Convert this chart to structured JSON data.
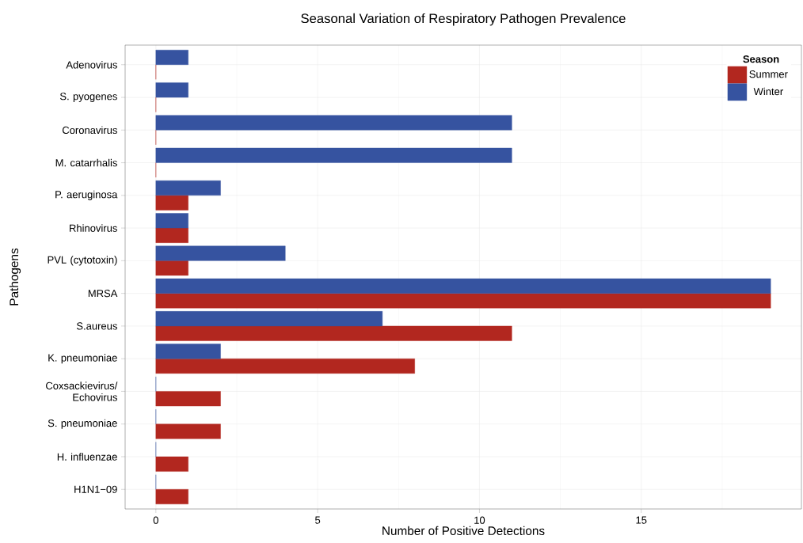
{
  "chart_data": {
    "type": "bar",
    "orientation": "horizontal",
    "title": "Seasonal Variation of Respiratory Pathogen Prevalence",
    "xlabel": "Number of Positive Detections",
    "ylabel": "Pathogens",
    "legend_title": "Season",
    "categories": [
      "Adenovirus",
      "S. pyogenes",
      "Coronavirus",
      "M. catarrhalis",
      "P. aeruginosa",
      "Rhinovirus",
      "PVL (cytotoxin)",
      "MRSA",
      "S.aureus",
      "K. pneumoniae",
      "Coxsackievirus/ Echovirus",
      "S. pneumoniae",
      "H. influenzae",
      "H1N1−09"
    ],
    "series": [
      {
        "name": "Summer",
        "color": "#b2271f",
        "values": [
          0,
          0,
          0,
          0,
          1,
          1,
          1,
          19,
          11,
          8,
          2,
          2,
          1,
          1
        ]
      },
      {
        "name": "Winter",
        "color": "#3653a0",
        "values": [
          1,
          1,
          11,
          11,
          2,
          1,
          4,
          19,
          7,
          2,
          0,
          0,
          0,
          0
        ]
      }
    ],
    "xlim": [
      -0.95,
      19.95
    ],
    "xticks": [
      0,
      5,
      10,
      15
    ],
    "grid": true,
    "legend": "top right"
  }
}
